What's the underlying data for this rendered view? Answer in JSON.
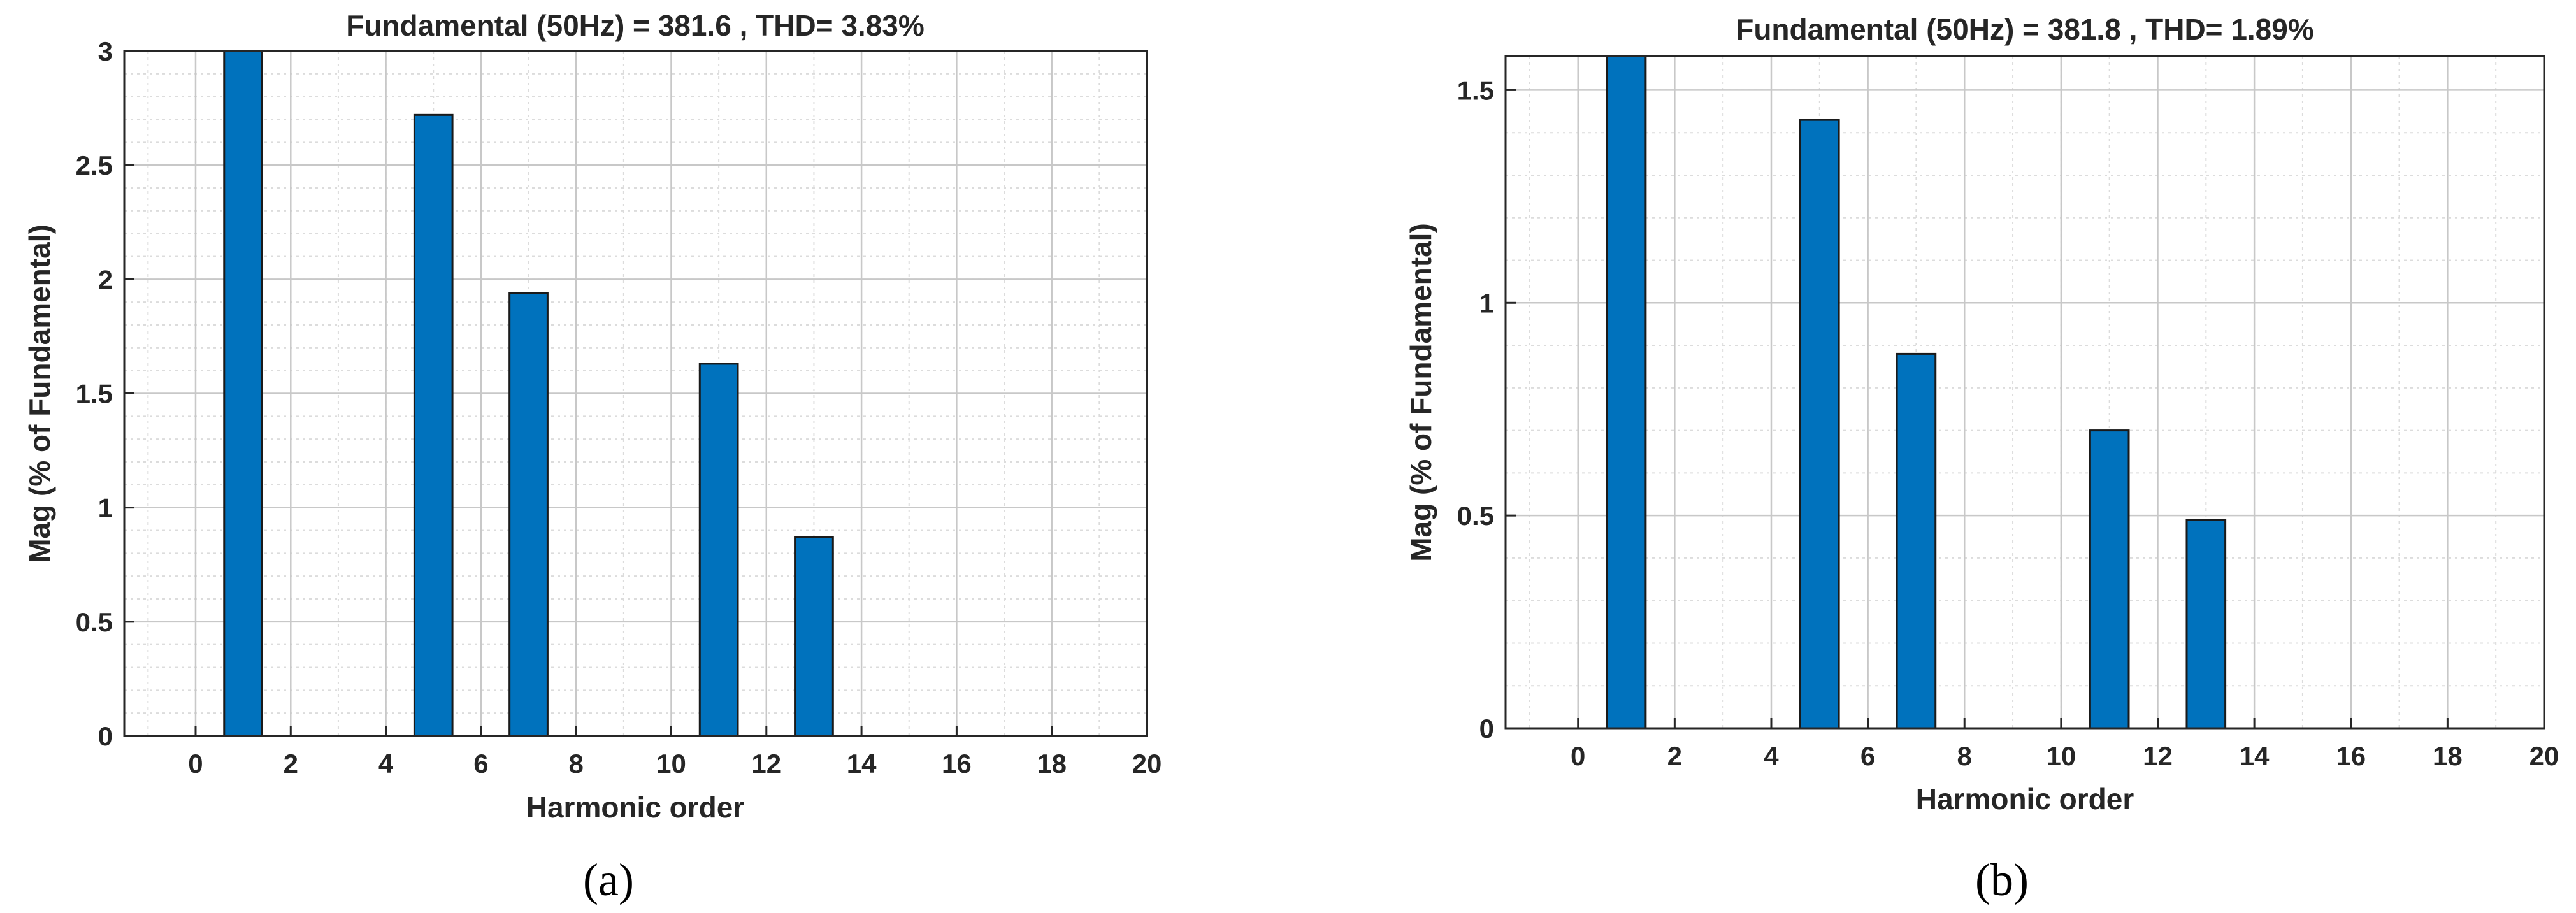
{
  "chart_data": [
    {
      "type": "bar",
      "title": "Fundamental (50Hz) = 381.6 , THD= 3.83%",
      "xlabel": "Harmonic order",
      "ylabel": "Mag (% of Fundamental)",
      "panel_label": "(a)",
      "xlim": [
        -1.5,
        20
      ],
      "ylim": [
        0,
        3
      ],
      "xticks": [
        0,
        2,
        4,
        6,
        8,
        10,
        12,
        14,
        16,
        18,
        20
      ],
      "yticks": [
        0,
        0.5,
        1,
        1.5,
        2,
        2.5,
        3
      ],
      "ytick_labels": [
        "0",
        "0.5",
        "1",
        "1.5",
        "2",
        "2.5",
        "3"
      ],
      "grid": true,
      "minor_grid": true,
      "bar_color": "#0072BD",
      "x": [
        0,
        1,
        2,
        3,
        4,
        5,
        6,
        7,
        8,
        9,
        10,
        11,
        12,
        13,
        14,
        15,
        16,
        17,
        18,
        19
      ],
      "values": [
        0,
        3.0,
        0,
        0,
        0,
        2.72,
        0,
        1.94,
        0,
        0,
        0,
        1.63,
        0,
        0.87,
        0,
        0,
        0,
        0,
        0,
        0
      ]
    },
    {
      "type": "bar",
      "title": "Fundamental (50Hz) = 381.8 , THD= 1.89%",
      "xlabel": "Harmonic order",
      "ylabel": "Mag (% of Fundamental)",
      "panel_label": "(b)",
      "xlim": [
        -1.5,
        20
      ],
      "ylim": [
        0,
        1.58
      ],
      "xticks": [
        0,
        2,
        4,
        6,
        8,
        10,
        12,
        14,
        16,
        18,
        20
      ],
      "yticks": [
        0,
        0.5,
        1,
        1.5
      ],
      "ytick_labels": [
        "0",
        "0.5",
        "1",
        "1.5"
      ],
      "grid": true,
      "minor_grid": true,
      "bar_color": "#0072BD",
      "x": [
        0,
        1,
        2,
        3,
        4,
        5,
        6,
        7,
        8,
        9,
        10,
        11,
        12,
        13,
        14,
        15,
        16,
        17,
        18,
        19
      ],
      "values": [
        0,
        1.58,
        0,
        0,
        0,
        1.43,
        0,
        0.88,
        0,
        0,
        0,
        0.7,
        0,
        0.49,
        0,
        0,
        0,
        0,
        0,
        0
      ]
    }
  ]
}
